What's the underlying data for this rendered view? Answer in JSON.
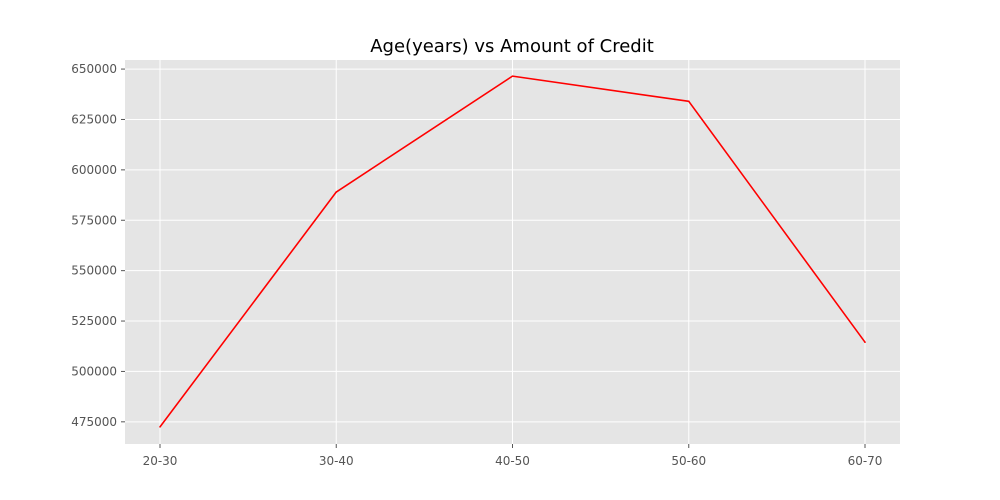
{
  "chart_data": {
    "type": "line",
    "title": "Age(years) vs Amount of Credit",
    "xlabel": "",
    "ylabel": "",
    "categories": [
      "20-30",
      "30-40",
      "40-50",
      "50-60",
      "60-70"
    ],
    "series": [
      {
        "values": [
          472500,
          589000,
          646500,
          634000,
          514500
        ],
        "color": "#ff0000"
      }
    ],
    "yticks": [
      475000,
      500000,
      525000,
      550000,
      575000,
      600000,
      625000,
      650000
    ],
    "ylim": [
      464000,
      654500
    ],
    "grid": true,
    "legend": "none",
    "colors": {
      "plot_background": "#e5e5e5",
      "grid": "#ffffff",
      "line": "#ff0000"
    }
  }
}
